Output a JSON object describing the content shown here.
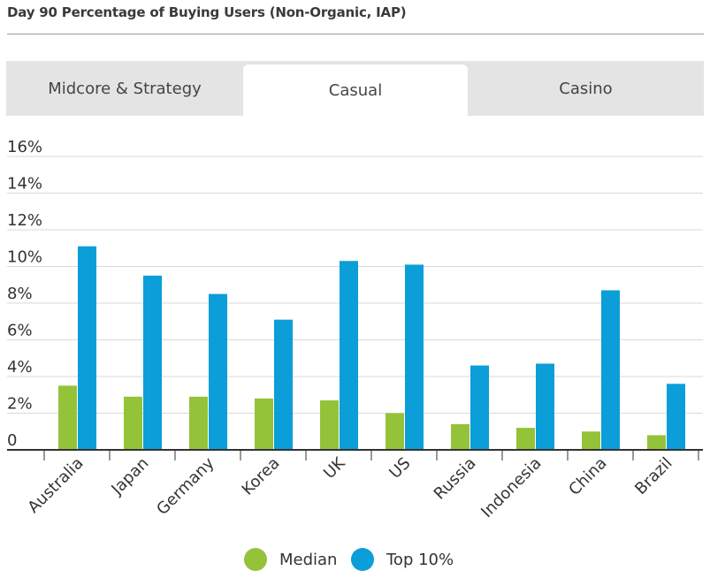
{
  "title": "Day 90 Percentage of Buying Users (Non-Organic, IAP)",
  "tabs": [
    {
      "label": "Midcore & Strategy",
      "active": false
    },
    {
      "label": "Casual",
      "active": true
    },
    {
      "label": "Casino",
      "active": false
    }
  ],
  "colors": {
    "median": "#94c33a",
    "top10": "#0b9ed8",
    "grid": "#d9d9d9",
    "axis": "#333333"
  },
  "chart_data": {
    "type": "bar",
    "categories": [
      "Australia",
      "Japan",
      "Germany",
      "Korea",
      "UK",
      "US",
      "Russia",
      "Indonesia",
      "China",
      "Brazil"
    ],
    "series": [
      {
        "name": "Median",
        "values": [
          3.5,
          2.9,
          2.9,
          2.8,
          2.7,
          2.0,
          1.4,
          1.2,
          1.0,
          0.8
        ]
      },
      {
        "name": "Top 10%",
        "values": [
          11.1,
          9.5,
          8.5,
          7.1,
          10.3,
          10.1,
          4.6,
          4.7,
          8.7,
          3.6
        ]
      }
    ],
    "y_ticks": [
      "0",
      "2%",
      "4%",
      "6%",
      "8%",
      "10%",
      "12%",
      "14%",
      "16%"
    ],
    "ylim": [
      0,
      16
    ],
    "grid": true,
    "legend_position": "bottom-center"
  }
}
